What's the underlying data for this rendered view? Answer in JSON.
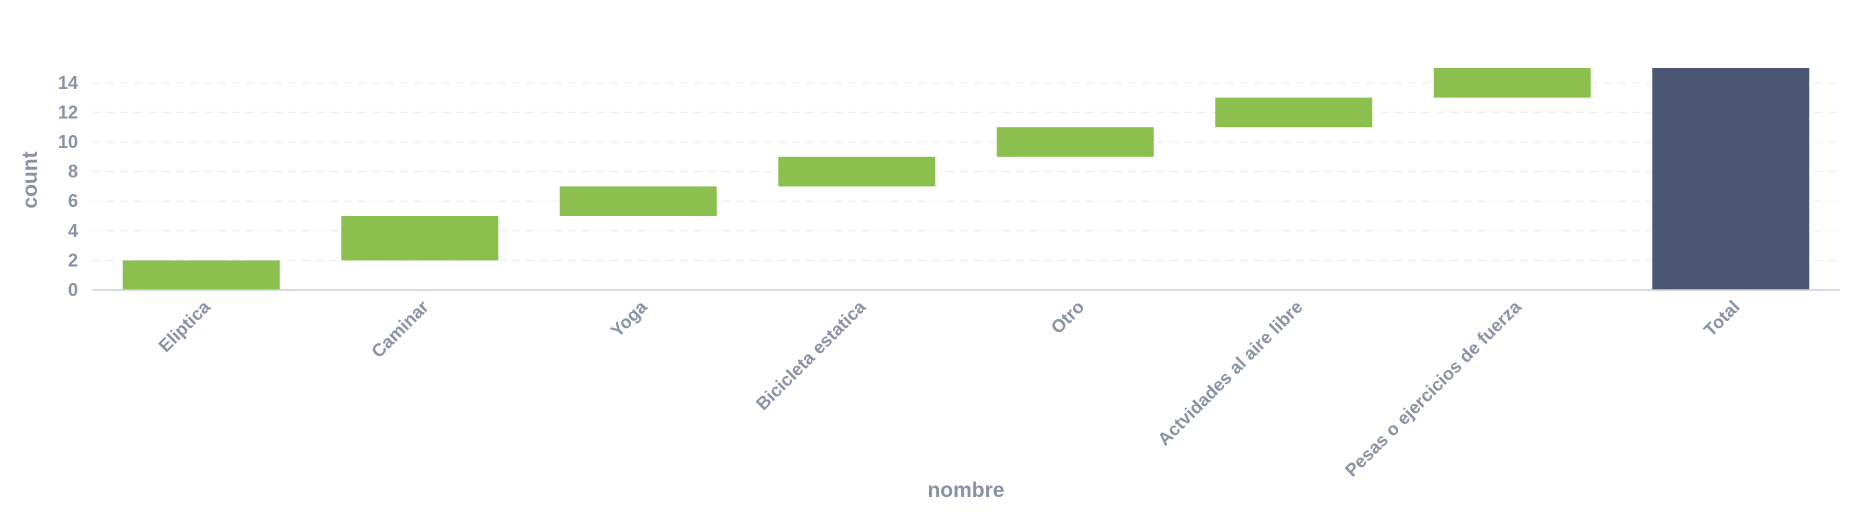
{
  "chart_data": {
    "type": "bar",
    "subtype": "waterfall",
    "xlabel": "nombre",
    "ylabel": "count",
    "ylim": [
      0,
      15
    ],
    "yticks": [
      0,
      2,
      4,
      6,
      8,
      10,
      12,
      14
    ],
    "grid": true,
    "categories": [
      "Eliptica",
      "Caminar",
      "Yoga",
      "Bicicleta estatica",
      "Otro",
      "Actvidades al aire libre",
      "Pesas o ejercicios de fuerza",
      "Total"
    ],
    "values": [
      2,
      3,
      2,
      2,
      2,
      2,
      2,
      15
    ],
    "bases": [
      0,
      2,
      5,
      7,
      9,
      11,
      13,
      0
    ],
    "colors": {
      "increase": "#8bbf4e",
      "total": "#4b5672",
      "text": "#8a92a6"
    }
  }
}
